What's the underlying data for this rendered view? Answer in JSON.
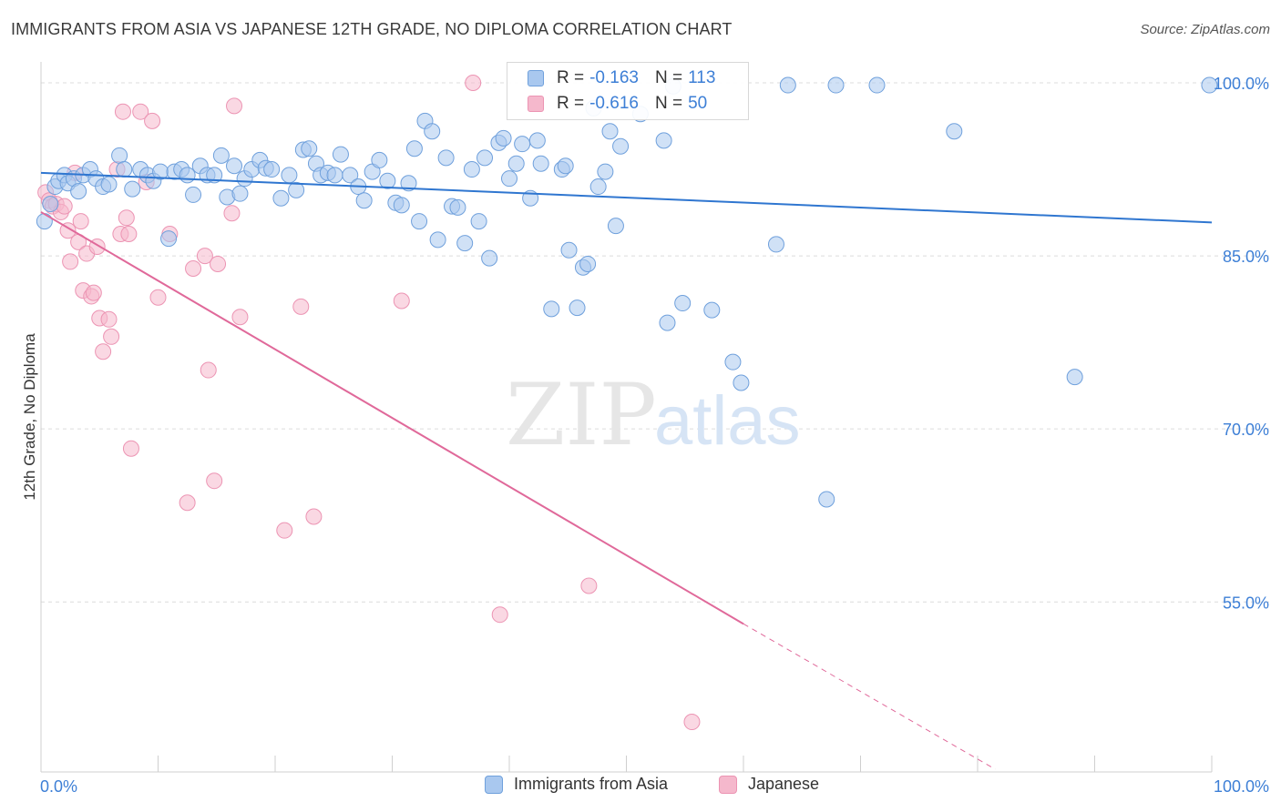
{
  "title": "IMMIGRANTS FROM ASIA VS JAPANESE 12TH GRADE, NO DIPLOMA CORRELATION CHART",
  "source": "Source: ZipAtlas.com",
  "watermark": {
    "zip": "ZIP",
    "atlas": "atlas"
  },
  "colors": {
    "asia_fill": "#a9c8ef",
    "asia_stroke": "#6fa0dc",
    "asia_line": "#2f76d0",
    "japanese_fill": "#f5b8cc",
    "japanese_stroke": "#ec94b3",
    "japanese_line": "#e0699a",
    "tick_label": "#3d7fd6",
    "grid": "#dcdcdc"
  },
  "stats": {
    "asia": {
      "r_label": "R =",
      "r_value": "-0.163",
      "n_label": "N =",
      "n_value": "113"
    },
    "japanese": {
      "r_label": "R =",
      "r_value": "-0.616",
      "n_label": "N =",
      "n_value": "50"
    }
  },
  "legend": {
    "asia": "Immigrants from Asia",
    "japanese": "Japanese"
  },
  "chart_data": {
    "type": "scatter",
    "title": "IMMIGRANTS FROM ASIA VS JAPANESE 12TH GRADE, NO DIPLOMA CORRELATION CHART",
    "xlabel": "",
    "ylabel": "12th Grade, No Diploma",
    "xlim": [
      0,
      100
    ],
    "ylim": [
      40.5,
      101.5
    ],
    "x_tick_labels": [
      "0.0%",
      "100.0%"
    ],
    "y_ticks": [
      100,
      85,
      70,
      55
    ],
    "y_tick_labels": [
      "100.0%",
      "85.0%",
      "70.0%",
      "55.0%"
    ],
    "grid": true,
    "series": [
      {
        "name": "Immigrants from Asia",
        "trend": {
          "x": [
            0,
            100
          ],
          "y": [
            92.2,
            87.9
          ]
        },
        "points": [
          [
            0.3,
            88.0
          ],
          [
            0.8,
            89.5
          ],
          [
            1.2,
            91.0
          ],
          [
            1.5,
            91.5
          ],
          [
            2.0,
            92.0
          ],
          [
            2.3,
            91.3
          ],
          [
            2.8,
            91.7
          ],
          [
            3.2,
            90.6
          ],
          [
            3.6,
            92.0
          ],
          [
            4.2,
            92.5
          ],
          [
            4.7,
            91.7
          ],
          [
            5.3,
            91.0
          ],
          [
            5.8,
            91.2
          ],
          [
            6.7,
            93.7
          ],
          [
            7.1,
            92.5
          ],
          [
            7.8,
            90.8
          ],
          [
            8.5,
            92.5
          ],
          [
            9.1,
            92.0
          ],
          [
            9.6,
            91.5
          ],
          [
            10.2,
            92.3
          ],
          [
            10.9,
            86.5
          ],
          [
            11.4,
            92.3
          ],
          [
            12.0,
            92.5
          ],
          [
            12.5,
            92.0
          ],
          [
            13.0,
            90.3
          ],
          [
            13.6,
            92.8
          ],
          [
            14.2,
            92.0
          ],
          [
            14.8,
            92.0
          ],
          [
            15.4,
            93.7
          ],
          [
            15.9,
            90.1
          ],
          [
            16.5,
            92.8
          ],
          [
            17.0,
            90.4
          ],
          [
            17.4,
            91.7
          ],
          [
            18.0,
            92.5
          ],
          [
            18.7,
            93.3
          ],
          [
            19.2,
            92.6
          ],
          [
            19.7,
            92.5
          ],
          [
            20.5,
            90.0
          ],
          [
            21.2,
            92.0
          ],
          [
            21.8,
            90.7
          ],
          [
            22.4,
            94.2
          ],
          [
            22.9,
            94.3
          ],
          [
            23.5,
            93.0
          ],
          [
            23.9,
            92.0
          ],
          [
            24.5,
            92.2
          ],
          [
            25.1,
            92.0
          ],
          [
            25.6,
            93.8
          ],
          [
            26.4,
            92.0
          ],
          [
            27.1,
            91.0
          ],
          [
            27.6,
            89.8
          ],
          [
            28.3,
            92.3
          ],
          [
            28.9,
            93.3
          ],
          [
            29.6,
            91.5
          ],
          [
            30.3,
            89.6
          ],
          [
            30.8,
            89.4
          ],
          [
            31.4,
            91.3
          ],
          [
            31.9,
            94.3
          ],
          [
            32.3,
            88.0
          ],
          [
            32.8,
            96.7
          ],
          [
            33.4,
            95.8
          ],
          [
            33.9,
            86.4
          ],
          [
            34.6,
            93.5
          ],
          [
            35.1,
            89.3
          ],
          [
            35.6,
            89.2
          ],
          [
            36.2,
            86.1
          ],
          [
            36.8,
            92.5
          ],
          [
            37.4,
            88.0
          ],
          [
            37.9,
            93.5
          ],
          [
            38.3,
            84.8
          ],
          [
            39.1,
            94.8
          ],
          [
            39.5,
            95.2
          ],
          [
            40.0,
            91.7
          ],
          [
            40.6,
            93.0
          ],
          [
            41.1,
            94.7
          ],
          [
            41.8,
            90.0
          ],
          [
            42.4,
            95.0
          ],
          [
            42.7,
            93.0
          ],
          [
            43.6,
            80.4
          ],
          [
            44.5,
            92.5
          ],
          [
            44.8,
            92.8
          ],
          [
            45.1,
            85.5
          ],
          [
            45.8,
            80.5
          ],
          [
            46.3,
            84.0
          ],
          [
            46.7,
            84.3
          ],
          [
            47.2,
            97.8
          ],
          [
            47.6,
            91.0
          ],
          [
            48.2,
            92.3
          ],
          [
            48.6,
            95.8
          ],
          [
            49.1,
            87.6
          ],
          [
            49.5,
            94.5
          ],
          [
            51.2,
            97.3
          ],
          [
            53.2,
            95.0
          ],
          [
            53.5,
            79.2
          ],
          [
            54.0,
            99.7
          ],
          [
            54.8,
            80.9
          ],
          [
            57.3,
            80.3
          ],
          [
            59.1,
            75.8
          ],
          [
            59.8,
            74.0
          ],
          [
            62.8,
            86.0
          ],
          [
            63.8,
            99.8
          ],
          [
            67.1,
            63.9
          ],
          [
            67.9,
            99.8
          ],
          [
            71.4,
            99.8
          ],
          [
            78.0,
            95.8
          ],
          [
            88.3,
            74.5
          ],
          [
            99.8,
            99.8
          ]
        ]
      },
      {
        "name": "Japanese",
        "trend": {
          "x": [
            0,
            60
          ],
          "y": [
            88.8,
            53.1
          ]
        },
        "trend_dashed": {
          "x": [
            60,
            81.5
          ],
          "y": [
            53.1,
            40.5
          ]
        },
        "points": [
          [
            0.4,
            90.5
          ],
          [
            0.7,
            89.8
          ],
          [
            1.0,
            89.3
          ],
          [
            1.3,
            89.5
          ],
          [
            1.7,
            88.8
          ],
          [
            2.0,
            89.3
          ],
          [
            2.3,
            87.2
          ],
          [
            2.5,
            84.5
          ],
          [
            2.9,
            92.2
          ],
          [
            3.2,
            86.2
          ],
          [
            3.4,
            88.0
          ],
          [
            3.6,
            82.0
          ],
          [
            3.9,
            85.2
          ],
          [
            4.3,
            81.5
          ],
          [
            4.5,
            81.8
          ],
          [
            4.8,
            85.8
          ],
          [
            5.0,
            79.6
          ],
          [
            5.3,
            76.7
          ],
          [
            5.8,
            79.5
          ],
          [
            6.0,
            78.0
          ],
          [
            6.5,
            92.5
          ],
          [
            6.8,
            86.9
          ],
          [
            7.0,
            97.5
          ],
          [
            7.3,
            88.3
          ],
          [
            7.5,
            86.9
          ],
          [
            7.7,
            68.3
          ],
          [
            8.5,
            97.5
          ],
          [
            9.0,
            91.4
          ],
          [
            9.5,
            96.7
          ],
          [
            10.0,
            81.4
          ],
          [
            11.0,
            86.9
          ],
          [
            12.5,
            63.6
          ],
          [
            13.0,
            83.9
          ],
          [
            14.0,
            85.0
          ],
          [
            14.3,
            75.1
          ],
          [
            14.8,
            65.5
          ],
          [
            15.1,
            84.3
          ],
          [
            16.3,
            88.7
          ],
          [
            16.5,
            98.0
          ],
          [
            17.0,
            79.7
          ],
          [
            20.8,
            61.2
          ],
          [
            22.2,
            80.6
          ],
          [
            23.3,
            62.4
          ],
          [
            30.8,
            81.1
          ],
          [
            36.9,
            100.0
          ],
          [
            39.2,
            53.9
          ],
          [
            46.8,
            56.4
          ],
          [
            55.6,
            44.6
          ]
        ]
      }
    ]
  }
}
